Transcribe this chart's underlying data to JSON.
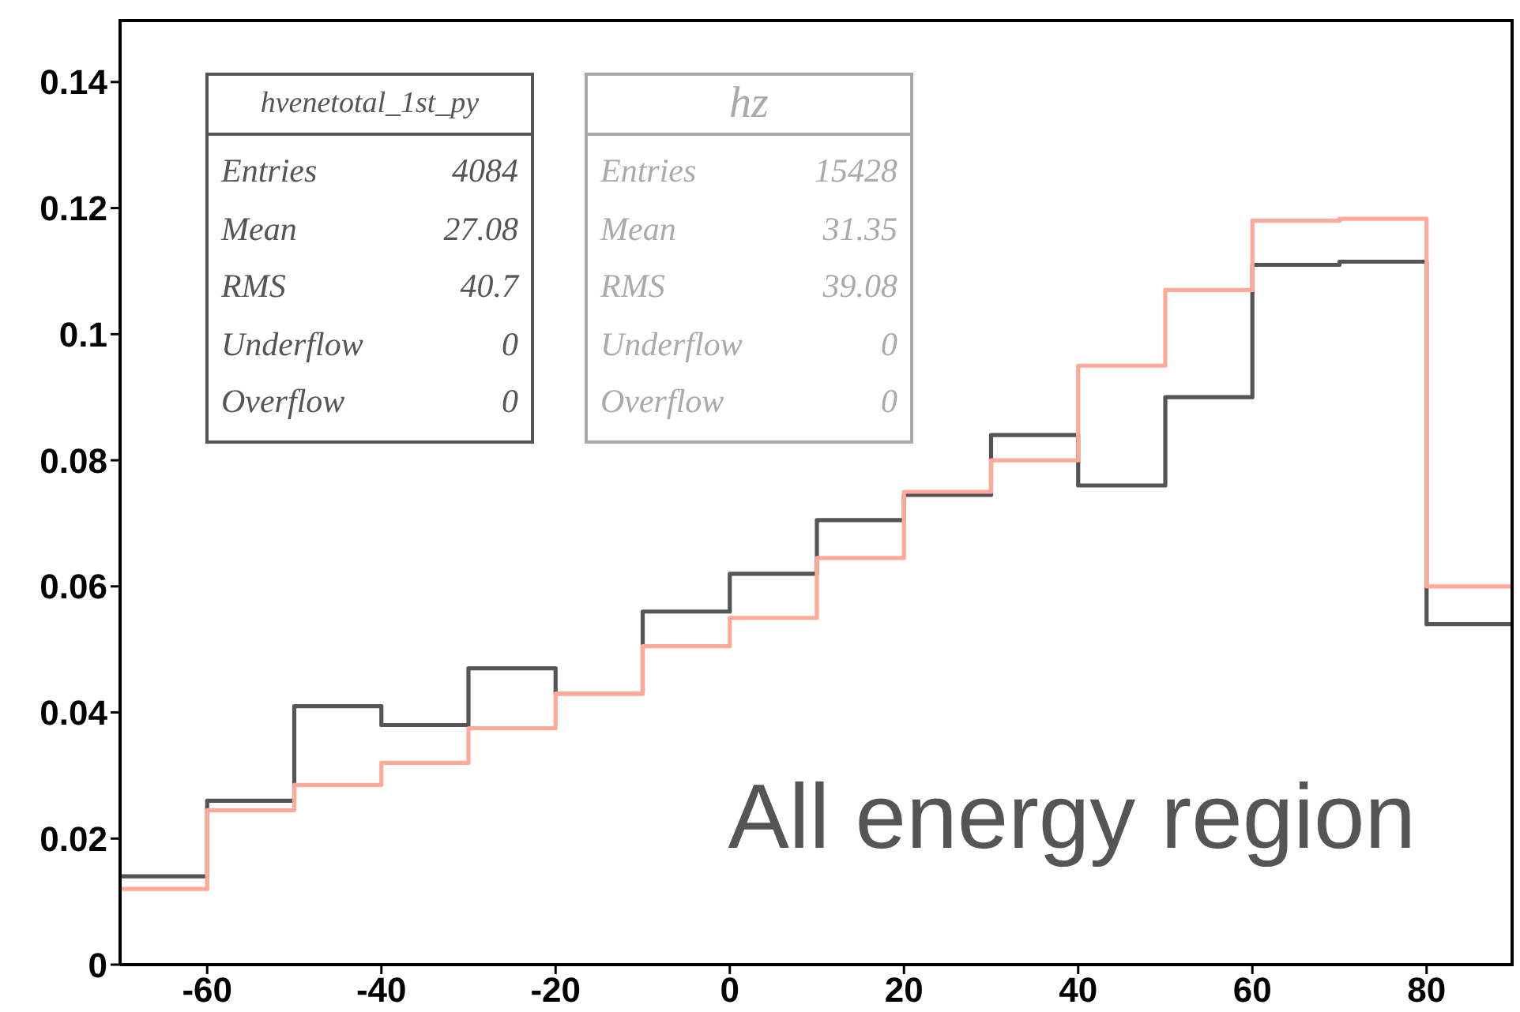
{
  "chart_data": {
    "type": "histogram",
    "bins": [
      -70,
      -60,
      -50,
      -40,
      -30,
      -20,
      -10,
      0,
      10,
      20,
      30,
      40,
      50,
      60,
      70,
      80,
      90
    ],
    "series": [
      {
        "color": "#555555",
        "values": [
          0.014,
          0.026,
          0.041,
          0.038,
          0.047,
          0.043,
          0.056,
          0.062,
          0.0705,
          0.0745,
          0.084,
          0.076,
          0.09,
          0.111,
          0.1115,
          0.054
        ]
      },
      {
        "color": "#ffaa99",
        "values": [
          0.012,
          0.0245,
          0.0285,
          0.032,
          0.0375,
          0.043,
          0.0505,
          0.055,
          0.0645,
          0.075,
          0.08,
          0.095,
          0.107,
          0.118,
          0.1183,
          0.06
        ]
      }
    ],
    "xlim": [
      -70,
      90
    ],
    "xticks": [
      -60,
      -40,
      -20,
      0,
      20,
      40,
      60,
      80
    ],
    "ylim": [
      0,
      0.15
    ],
    "yticks": [
      0,
      0.02,
      0.04,
      0.06,
      0.08,
      0.1,
      0.12,
      0.14
    ],
    "grid": false,
    "legend": false,
    "annotations": [
      "hvenetotal_1st_py",
      "Entries",
      "4084",
      "Mean",
      "27.08",
      "RMS",
      "40.7",
      "Underflow",
      "0",
      "Overflow",
      "0",
      "hz",
      "Entries",
      "15428",
      "Mean",
      "31.35",
      "RMS",
      "39.08",
      "Underflow",
      "0",
      "Overflow",
      "0",
      "All energy region"
    ]
  }
}
